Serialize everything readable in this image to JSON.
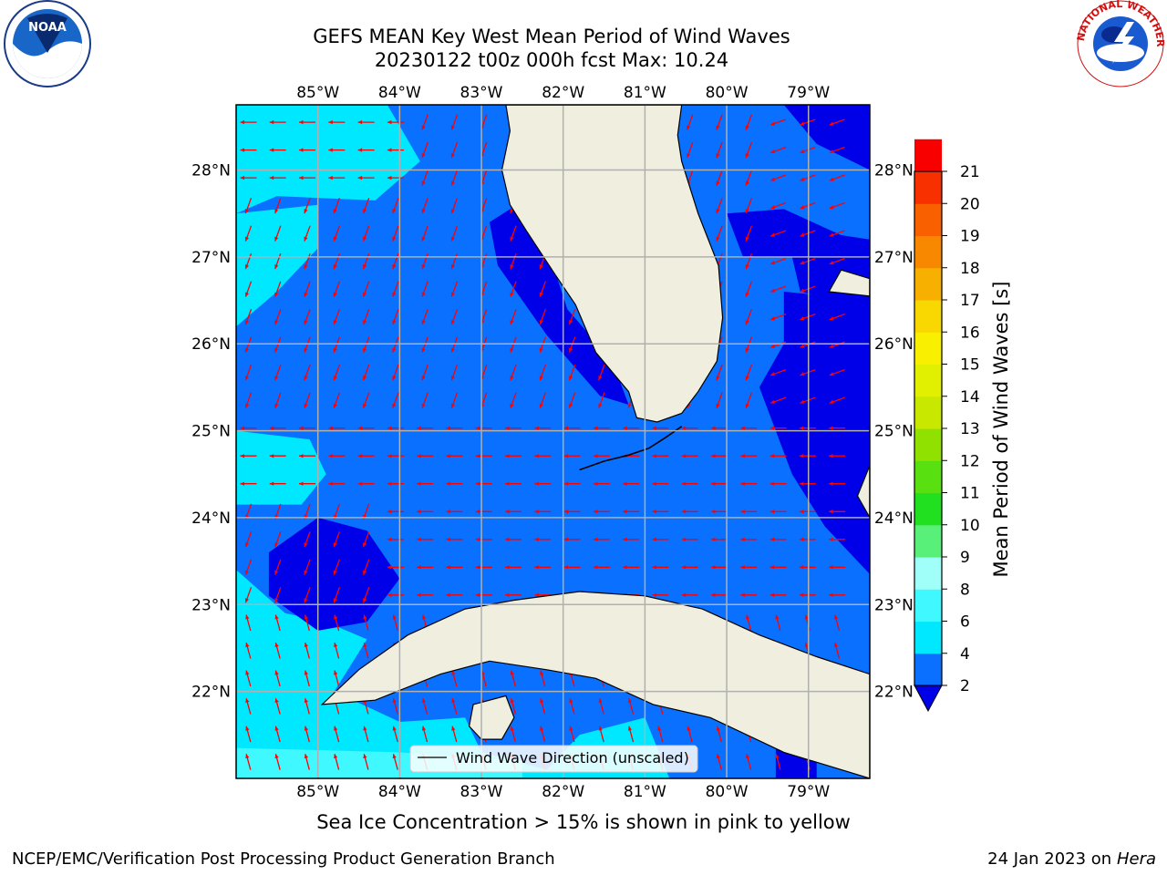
{
  "title": {
    "line1": "GEFS MEAN Key West Mean Period of Wind Waves",
    "line2": "20230122 t00z 000h fcst   Max: 10.24"
  },
  "map": {
    "lon_range": [
      -86.0,
      -78.25
    ],
    "lat_range": [
      21.0,
      28.75
    ],
    "lon_ticks": [
      -85,
      -84,
      -83,
      -82,
      -81,
      -80,
      -79
    ],
    "lon_labels": [
      "85°W",
      "84°W",
      "83°W",
      "82°W",
      "81°W",
      "80°W",
      "79°W"
    ],
    "lat_ticks": [
      22,
      23,
      24,
      25,
      26,
      27,
      28
    ],
    "lat_labels": [
      "22°N",
      "23°N",
      "24°N",
      "25°N",
      "26°N",
      "27°N",
      "28°N"
    ],
    "land_color": "#efeedf",
    "grid": true
  },
  "legend": {
    "label": "Wind Wave Direction (unscaled)"
  },
  "colorbar": {
    "label": "Mean Period of Wind Waves [s]",
    "ticks": [
      "2",
      "4",
      "6",
      "8",
      "9",
      "10",
      "11",
      "12",
      "13",
      "14",
      "15",
      "16",
      "17",
      "18",
      "19",
      "20",
      "21"
    ],
    "colors": [
      "#0a70ff",
      "#00e8ff",
      "#40f8ff",
      "#a0fff8",
      "#58f078",
      "#20e020",
      "#58e010",
      "#90e000",
      "#c8e800",
      "#e0f000",
      "#f8f000",
      "#f8d800",
      "#f8b000",
      "#f88800",
      "#f86000",
      "#f83000",
      "#f80000"
    ],
    "under_color": "#0000e8"
  },
  "note": "Sea Ice Concentration > 15% is shown in pink to yellow",
  "footer": {
    "branch": "NCEP/EMC/Verification Post Processing Product Generation Branch",
    "date": "24 Jan 2023 on",
    "machine": "Hera"
  },
  "logos": {
    "noaa": "NOAA",
    "nws": "NATIONAL WEATHER SERVICE"
  },
  "arrow_color": "#ff0000"
}
